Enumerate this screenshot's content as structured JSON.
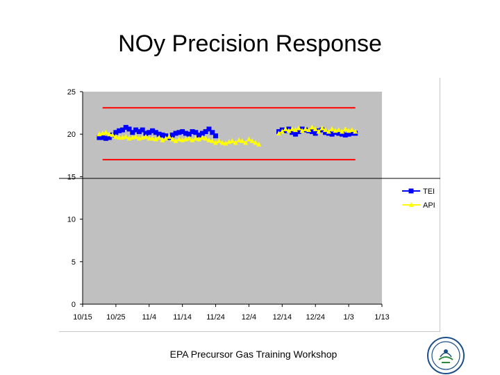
{
  "slide": {
    "title": "NOy Precision Response",
    "footer": "EPA Precursor Gas Training Workshop"
  },
  "chart_data": {
    "type": "line",
    "title": "",
    "xlabel": "",
    "ylabel": "",
    "x_axis": {
      "tick_labels": [
        "10/15",
        "10/25",
        "11/4",
        "11/14",
        "11/24",
        "12/4",
        "12/14",
        "12/24",
        "1/3",
        "1/13"
      ],
      "range": [
        "10/15",
        "1/13"
      ]
    },
    "y_axis": {
      "tick_labels": [
        "0",
        "5",
        "10",
        "15",
        "20",
        "25"
      ],
      "range": [
        0,
        25
      ]
    },
    "grid": false,
    "plot_area_color": "#c0c0c0",
    "legend_position": "right",
    "series": [
      {
        "name": "TEI",
        "color": "#0000ff",
        "marker": "square",
        "points": [
          [
            "10/20",
            19.6
          ],
          [
            "10/21",
            19.6
          ],
          [
            "10/22",
            19.5
          ],
          [
            "10/23",
            19.6
          ],
          [
            "10/24",
            19.9
          ],
          [
            "10/25",
            20.2
          ],
          [
            "10/26",
            20.4
          ],
          [
            "10/27",
            20.5
          ],
          [
            "10/28",
            20.8
          ],
          [
            "10/29",
            20.6
          ],
          [
            "10/30",
            20.2
          ],
          [
            "10/31",
            20.5
          ],
          [
            "11/1",
            20.3
          ],
          [
            "11/2",
            20.5
          ],
          [
            "11/3",
            20.1
          ],
          [
            "11/4",
            20.2
          ],
          [
            "11/5",
            20.4
          ],
          [
            "11/6",
            20.2
          ],
          [
            "11/7",
            20.0
          ],
          [
            "11/8",
            19.9
          ],
          [
            "11/9",
            19.8
          ],
          [
            "11/10",
            19.6
          ],
          [
            "11/11",
            19.9
          ],
          [
            "11/12",
            20.1
          ],
          [
            "11/13",
            20.2
          ],
          [
            "11/14",
            20.3
          ],
          [
            "11/15",
            20.1
          ],
          [
            "11/16",
            20.0
          ],
          [
            "11/17",
            20.3
          ],
          [
            "11/18",
            20.2
          ],
          [
            "11/19",
            19.9
          ],
          [
            "11/20",
            20.1
          ],
          [
            "11/21",
            20.3
          ],
          [
            "11/22",
            20.6
          ],
          [
            "11/23",
            20.2
          ],
          [
            "11/24",
            19.8
          ],
          [
            "12/13",
            20.3
          ],
          [
            "12/14",
            20.5
          ],
          [
            "12/15",
            20.4
          ],
          [
            "12/16",
            20.6
          ],
          [
            "12/17",
            20.2
          ],
          [
            "12/18",
            20.0
          ],
          [
            "12/19",
            20.3
          ],
          [
            "12/20",
            20.6
          ],
          [
            "12/21",
            20.5
          ],
          [
            "12/22",
            20.4
          ],
          [
            "12/23",
            20.3
          ],
          [
            "12/24",
            20.1
          ],
          [
            "12/25",
            20.4
          ],
          [
            "12/26",
            20.5
          ],
          [
            "12/27",
            20.2
          ],
          [
            "12/28",
            20.1
          ],
          [
            "12/29",
            20.0
          ],
          [
            "12/30",
            20.2
          ],
          [
            "12/31",
            20.1
          ],
          [
            "1/1",
            20.0
          ],
          [
            "1/2",
            19.9
          ],
          [
            "1/3",
            20.0
          ],
          [
            "1/4",
            20.1
          ],
          [
            "1/5",
            20.1
          ]
        ]
      },
      {
        "name": "API",
        "color": "#ffff00",
        "marker": "triangle",
        "points": [
          [
            "10/20",
            20.0
          ],
          [
            "10/21",
            20.1
          ],
          [
            "10/22",
            20.2
          ],
          [
            "10/23",
            20.0
          ],
          [
            "10/24",
            19.9
          ],
          [
            "10/25",
            19.7
          ],
          [
            "10/26",
            19.6
          ],
          [
            "10/27",
            19.6
          ],
          [
            "10/28",
            19.7
          ],
          [
            "10/29",
            19.5
          ],
          [
            "10/30",
            19.6
          ],
          [
            "10/31",
            19.7
          ],
          [
            "11/1",
            19.5
          ],
          [
            "11/2",
            19.6
          ],
          [
            "11/3",
            19.7
          ],
          [
            "11/4",
            19.5
          ],
          [
            "11/5",
            19.5
          ],
          [
            "11/6",
            19.4
          ],
          [
            "11/7",
            19.6
          ],
          [
            "11/8",
            19.3
          ],
          [
            "11/9",
            19.5
          ],
          [
            "11/10",
            19.7
          ],
          [
            "11/11",
            19.4
          ],
          [
            "11/12",
            19.2
          ],
          [
            "11/13",
            19.4
          ],
          [
            "11/14",
            19.3
          ],
          [
            "11/15",
            19.4
          ],
          [
            "11/16",
            19.5
          ],
          [
            "11/17",
            19.3
          ],
          [
            "11/18",
            19.5
          ],
          [
            "11/19",
            19.4
          ],
          [
            "11/20",
            19.6
          ],
          [
            "11/21",
            19.5
          ],
          [
            "11/22",
            19.3
          ],
          [
            "11/23",
            19.2
          ],
          [
            "11/24",
            19.0
          ],
          [
            "11/25",
            19.2
          ],
          [
            "11/26",
            19.0
          ],
          [
            "11/27",
            18.9
          ],
          [
            "11/28",
            19.1
          ],
          [
            "11/29",
            19.2
          ],
          [
            "11/30",
            19.0
          ],
          [
            "12/1",
            19.3
          ],
          [
            "12/2",
            19.2
          ],
          [
            "12/3",
            19.0
          ],
          [
            "12/4",
            19.4
          ],
          [
            "12/5",
            19.2
          ],
          [
            "12/6",
            19.0
          ],
          [
            "12/7",
            18.8
          ],
          [
            "12/13",
            20.1
          ],
          [
            "12/14",
            20.3
          ],
          [
            "12/15",
            20.6
          ],
          [
            "12/16",
            20.4
          ],
          [
            "12/17",
            20.6
          ],
          [
            "12/18",
            20.5
          ],
          [
            "12/19",
            20.7
          ],
          [
            "12/20",
            20.4
          ],
          [
            "12/21",
            20.6
          ],
          [
            "12/22",
            20.5
          ],
          [
            "12/23",
            20.8
          ],
          [
            "12/24",
            20.6
          ],
          [
            "12/25",
            20.3
          ],
          [
            "12/26",
            20.7
          ],
          [
            "12/27",
            20.5
          ],
          [
            "12/28",
            20.3
          ],
          [
            "12/29",
            20.6
          ],
          [
            "12/30",
            20.4
          ],
          [
            "12/31",
            20.5
          ],
          [
            "1/1",
            20.3
          ],
          [
            "1/2",
            20.6
          ],
          [
            "1/3",
            20.4
          ],
          [
            "1/4",
            20.5
          ],
          [
            "1/5",
            20.3
          ]
        ]
      }
    ],
    "reference_lines": [
      {
        "orientation": "horizontal",
        "y": 23.1,
        "x_from": "10/21",
        "x_to": "1/5",
        "color": "#ff0000"
      },
      {
        "orientation": "horizontal",
        "y": 17.0,
        "x_from": "10/21",
        "x_to": "1/5",
        "color": "#ff0000"
      },
      {
        "orientation": "horizontal",
        "y": 14.8,
        "x_from": "10/15",
        "x_to": "1/13",
        "color": "#000000",
        "extends_beyond_plot": true
      }
    ]
  }
}
